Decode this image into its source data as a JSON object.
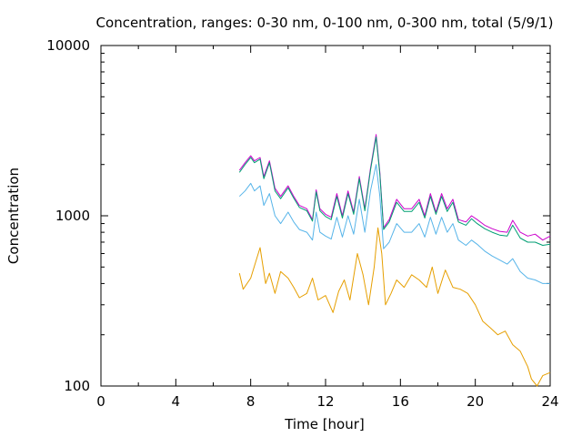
{
  "chart_data": {
    "type": "line",
    "title": "Concentration, ranges: 0-30 nm, 0-100 nm, 0-300 nm, total (5/9/1)",
    "xlabel": "Time [hour]",
    "ylabel": "Concentration",
    "xlim": [
      0,
      24
    ],
    "ylim": [
      100,
      10000
    ],
    "yscale": "log",
    "grid": false,
    "legend": "none",
    "x_ticks": [
      0,
      4,
      8,
      12,
      16,
      20,
      24
    ],
    "x_tick_labels": [
      "0",
      "4",
      "8",
      "12",
      "16",
      "20",
      "24"
    ],
    "y_ticks": [
      100,
      1000,
      10000
    ],
    "y_tick_labels": [
      "100",
      "1000",
      "10000"
    ],
    "series": [
      {
        "color": "#cc00cc",
        "x": [
          7.4,
          7.7,
          8.0,
          8.2,
          8.5,
          8.7,
          9.0,
          9.3,
          9.6,
          10.0,
          10.3,
          10.6,
          11.0,
          11.3,
          11.5,
          11.7,
          12.0,
          12.3,
          12.6,
          12.9,
          13.2,
          13.5,
          13.8,
          14.1,
          14.4,
          14.7,
          14.9,
          15.1,
          15.4,
          15.8,
          16.2,
          16.6,
          17.0,
          17.3,
          17.6,
          17.9,
          18.2,
          18.5,
          18.8,
          19.1,
          19.5,
          19.8,
          20.1,
          20.5,
          20.9,
          21.3,
          21.7,
          22.0,
          22.4,
          22.8,
          23.2,
          23.6,
          24.0
        ],
        "y": [
          1850,
          2050,
          2250,
          2100,
          2200,
          1700,
          2100,
          1450,
          1300,
          1500,
          1300,
          1150,
          1100,
          950,
          1420,
          1100,
          1020,
          980,
          1350,
          1000,
          1400,
          1050,
          1700,
          1100,
          1900,
          3000,
          1800,
          850,
          950,
          1250,
          1100,
          1100,
          1250,
          1000,
          1350,
          1050,
          1350,
          1100,
          1250,
          950,
          920,
          1000,
          950,
          880,
          840,
          810,
          800,
          940,
          800,
          760,
          780,
          720,
          760
        ]
      },
      {
        "color": "#009e73",
        "x": [
          7.4,
          7.7,
          8.0,
          8.2,
          8.5,
          8.7,
          9.0,
          9.3,
          9.6,
          10.0,
          10.3,
          10.6,
          11.0,
          11.3,
          11.5,
          11.7,
          12.0,
          12.3,
          12.6,
          12.9,
          13.2,
          13.5,
          13.8,
          14.1,
          14.4,
          14.7,
          14.9,
          15.1,
          15.4,
          15.8,
          16.2,
          16.6,
          17.0,
          17.3,
          17.6,
          17.9,
          18.2,
          18.5,
          18.8,
          19.1,
          19.5,
          19.8,
          20.1,
          20.5,
          20.9,
          21.3,
          21.7,
          22.0,
          22.4,
          22.8,
          23.2,
          23.6,
          24.0
        ],
        "y": [
          1800,
          2000,
          2200,
          2050,
          2150,
          1650,
          2050,
          1400,
          1260,
          1460,
          1270,
          1120,
          1070,
          930,
          1380,
          1070,
          990,
          950,
          1300,
          970,
          1350,
          1020,
          1650,
          1070,
          1850,
          2900,
          1750,
          830,
          920,
          1200,
          1060,
          1060,
          1200,
          970,
          1300,
          1020,
          1300,
          1060,
          1200,
          920,
          880,
          960,
          900,
          840,
          800,
          770,
          760,
          880,
          740,
          700,
          700,
          670,
          680
        ]
      },
      {
        "color": "#56b4e9",
        "x": [
          7.4,
          7.7,
          8.0,
          8.2,
          8.5,
          8.7,
          9.0,
          9.3,
          9.6,
          10.0,
          10.3,
          10.6,
          11.0,
          11.3,
          11.5,
          11.7,
          12.0,
          12.3,
          12.6,
          12.9,
          13.2,
          13.5,
          13.8,
          14.1,
          14.4,
          14.7,
          14.9,
          15.1,
          15.4,
          15.8,
          16.2,
          16.6,
          17.0,
          17.3,
          17.6,
          17.9,
          18.2,
          18.5,
          18.8,
          19.1,
          19.5,
          19.8,
          20.1,
          20.5,
          20.9,
          21.3,
          21.7,
          22.0,
          22.4,
          22.8,
          23.2,
          23.6,
          24.0
        ],
        "y": [
          1300,
          1400,
          1550,
          1400,
          1500,
          1150,
          1350,
          1000,
          900,
          1050,
          920,
          830,
          800,
          720,
          1050,
          800,
          760,
          730,
          980,
          750,
          1000,
          780,
          1250,
          800,
          1400,
          2000,
          1300,
          640,
          700,
          900,
          800,
          800,
          900,
          750,
          980,
          780,
          980,
          800,
          900,
          720,
          670,
          720,
          680,
          620,
          580,
          550,
          520,
          560,
          470,
          430,
          420,
          400,
          400
        ]
      },
      {
        "color": "#e69f00",
        "x": [
          7.4,
          7.6,
          8.0,
          8.3,
          8.5,
          8.8,
          9.0,
          9.3,
          9.6,
          10.0,
          10.3,
          10.6,
          11.0,
          11.3,
          11.6,
          12.0,
          12.4,
          12.7,
          13.0,
          13.3,
          13.7,
          14.0,
          14.3,
          14.6,
          14.8,
          15.0,
          15.2,
          15.5,
          15.8,
          16.2,
          16.6,
          17.0,
          17.4,
          17.7,
          18.0,
          18.4,
          18.8,
          19.2,
          19.6,
          20.0,
          20.4,
          20.8,
          21.2,
          21.6,
          22.0,
          22.4,
          22.8,
          23.0,
          23.3,
          23.6,
          24.0
        ],
        "y": [
          460,
          370,
          430,
          550,
          650,
          400,
          460,
          350,
          470,
          430,
          380,
          330,
          350,
          430,
          320,
          340,
          270,
          360,
          420,
          320,
          600,
          450,
          300,
          500,
          850,
          600,
          300,
          350,
          420,
          380,
          450,
          420,
          380,
          500,
          350,
          480,
          380,
          370,
          350,
          300,
          240,
          220,
          200,
          210,
          175,
          160,
          130,
          110,
          100,
          115,
          120
        ]
      }
    ]
  }
}
